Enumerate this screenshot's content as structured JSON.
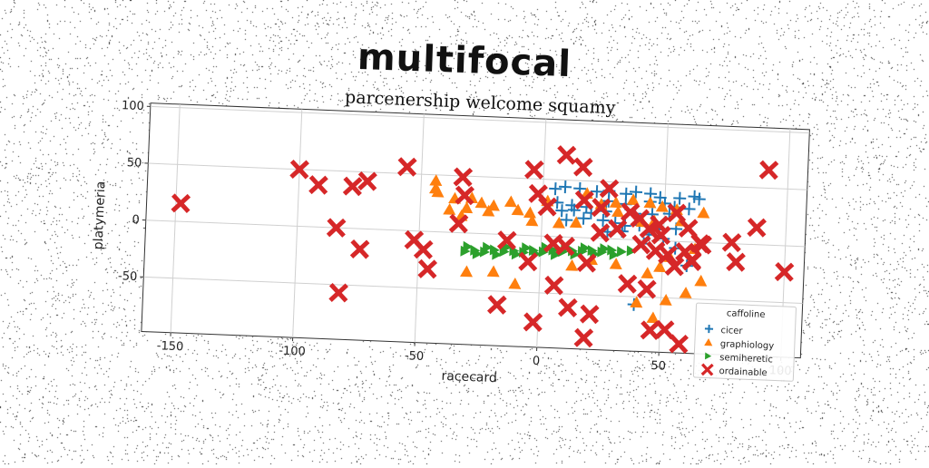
{
  "title": "multifocal",
  "chart_data": {
    "type": "scatter",
    "title": "parcenership welcome squamy",
    "xlabel": "racecard",
    "ylabel": "platymeria",
    "xlim": [
      -162,
      108
    ],
    "ylim": [
      -98,
      103
    ],
    "xticks": [
      -150,
      -100,
      -50,
      0,
      50,
      100
    ],
    "yticks": [
      100,
      50,
      0,
      -50
    ],
    "grid": true,
    "legend": {
      "placement": "bottom-right",
      "title": "caffoline"
    },
    "series": [
      {
        "name": "cicer",
        "marker": "plus",
        "color": "#1f77b4",
        "points": [
          [
            5,
            42
          ],
          [
            9,
            44
          ],
          [
            15,
            43
          ],
          [
            22,
            41
          ],
          [
            27,
            42
          ],
          [
            34,
            40
          ],
          [
            38,
            42
          ],
          [
            44,
            41
          ],
          [
            48,
            38
          ],
          [
            56,
            38
          ],
          [
            62,
            40
          ],
          [
            64,
            38
          ],
          [
            6,
            30
          ],
          [
            12,
            28
          ],
          [
            18,
            27
          ],
          [
            27,
            33
          ],
          [
            34,
            31
          ],
          [
            44,
            34
          ],
          [
            50,
            33
          ],
          [
            54,
            30
          ],
          [
            60,
            29
          ],
          [
            8,
            23
          ],
          [
            13,
            24
          ],
          [
            20,
            22
          ],
          [
            26,
            24
          ],
          [
            38,
            23
          ],
          [
            45,
            23
          ],
          [
            52,
            24
          ],
          [
            10,
            15
          ],
          [
            17,
            17
          ],
          [
            25,
            16
          ],
          [
            30,
            14
          ],
          [
            34,
            12
          ],
          [
            40,
            13
          ],
          [
            48,
            10
          ],
          [
            55,
            11
          ],
          [
            27,
            6
          ],
          [
            33,
            7
          ],
          [
            44,
            5
          ],
          [
            50,
            2
          ],
          [
            42,
            -3
          ],
          [
            55,
            -6
          ],
          [
            39,
            -57
          ],
          [
            60,
            -21
          ]
        ]
      },
      {
        "name": "graphiology",
        "marker": "triangle-up",
        "color": "#ff7f0e",
        "points": [
          [
            -44,
            45
          ],
          [
            -44,
            38
          ],
          [
            -43,
            35
          ],
          [
            -36,
            30
          ],
          [
            -29,
            31
          ],
          [
            -25,
            27
          ],
          [
            -20,
            25
          ],
          [
            -13,
            29
          ],
          [
            -31,
            22
          ],
          [
            -38,
            20
          ],
          [
            -33,
            15
          ],
          [
            -22,
            20
          ],
          [
            -10,
            22
          ],
          [
            -5,
            20
          ],
          [
            -4,
            13
          ],
          [
            7,
            12
          ],
          [
            14,
            13
          ],
          [
            2,
            31
          ],
          [
            18,
            39
          ],
          [
            24,
            30
          ],
          [
            30,
            32
          ],
          [
            37,
            35
          ],
          [
            44,
            33
          ],
          [
            49,
            30
          ],
          [
            55,
            28
          ],
          [
            66,
            26
          ],
          [
            31,
            24
          ],
          [
            41,
            16
          ],
          [
            46,
            17
          ],
          [
            57,
            18
          ],
          [
            63,
            -6
          ],
          [
            53,
            -14
          ],
          [
            49,
            -23
          ],
          [
            44,
            -29
          ],
          [
            66,
            -34
          ],
          [
            -30,
            -34
          ],
          [
            -19,
            -33
          ],
          [
            -10,
            -43
          ],
          [
            13,
            -25
          ],
          [
            21,
            -19
          ],
          [
            31,
            -22
          ],
          [
            40,
            -55
          ],
          [
            47,
            -68
          ],
          [
            52,
            -52
          ],
          [
            60,
            -45
          ]
        ]
      },
      {
        "name": "semiheretic",
        "marker": "triangle-right",
        "color": "#2ca02c",
        "points": [
          [
            -31,
            -16
          ],
          [
            -27,
            -15
          ],
          [
            -23,
            -16
          ],
          [
            -19,
            -14
          ],
          [
            -15,
            -15
          ],
          [
            -11,
            -14
          ],
          [
            -7,
            -15
          ],
          [
            -3,
            -13
          ],
          [
            1,
            -14
          ],
          [
            5,
            -12
          ],
          [
            9,
            -13
          ],
          [
            13,
            -12
          ],
          [
            17,
            -12
          ],
          [
            21,
            -11
          ],
          [
            25,
            -12
          ],
          [
            29,
            -10
          ],
          [
            33,
            -11
          ],
          [
            37,
            -10
          ],
          [
            -30,
            -12
          ],
          [
            -22,
            -12
          ],
          [
            -14,
            -11
          ],
          [
            -6,
            -11
          ],
          [
            2,
            -10
          ],
          [
            10,
            -10
          ],
          [
            18,
            -9
          ],
          [
            26,
            -9
          ],
          [
            -26,
            -18
          ],
          [
            -18,
            -18
          ],
          [
            -10,
            -17
          ],
          [
            -2,
            -16
          ],
          [
            6,
            -16
          ],
          [
            14,
            -15
          ],
          [
            22,
            -14
          ],
          [
            30,
            -14
          ]
        ]
      },
      {
        "name": "ordainable",
        "marker": "x-filled",
        "color": "#d62728",
        "points": [
          [
            -148,
            16
          ],
          [
            -100,
            50
          ],
          [
            -92,
            37
          ],
          [
            -78,
            37
          ],
          [
            -72,
            42
          ],
          [
            -56,
            56
          ],
          [
            -84,
            0
          ],
          [
            -74,
            -18
          ],
          [
            -52,
            -8
          ],
          [
            -48,
            -16
          ],
          [
            -46,
            -33
          ],
          [
            -33,
            49
          ],
          [
            -32,
            33
          ],
          [
            -34,
            8
          ],
          [
            -82,
            -57
          ],
          [
            -14,
            -5
          ],
          [
            -17,
            -62
          ],
          [
            -5,
            -23
          ],
          [
            -4,
            58
          ],
          [
            -2,
            37
          ],
          [
            2,
            26
          ],
          [
            5,
            -6
          ],
          [
            6,
            -43
          ],
          [
            -2,
            -76
          ],
          [
            10,
            -8
          ],
          [
            12,
            -62
          ],
          [
            19,
            -22
          ],
          [
            21,
            -67
          ],
          [
            9,
            72
          ],
          [
            16,
            62
          ],
          [
            17,
            33
          ],
          [
            24,
            27
          ],
          [
            27,
            44
          ],
          [
            24,
            5
          ],
          [
            19,
            -88
          ],
          [
            31,
            9
          ],
          [
            36,
            24
          ],
          [
            40,
            19
          ],
          [
            44,
            10
          ],
          [
            48,
            14
          ],
          [
            49,
            5
          ],
          [
            41,
            -4
          ],
          [
            47,
            -9
          ],
          [
            52,
            -12
          ],
          [
            55,
            -22
          ],
          [
            62,
            -16
          ],
          [
            59,
            -9
          ],
          [
            65,
            -1
          ],
          [
            60,
            12
          ],
          [
            55,
            25
          ],
          [
            36,
            -39
          ],
          [
            44,
            -43
          ],
          [
            46,
            -79
          ],
          [
            52,
            -78
          ],
          [
            58,
            -90
          ],
          [
            66,
            -2
          ],
          [
            62,
            -17
          ],
          [
            78,
            1
          ],
          [
            80,
            -16
          ],
          [
            88,
            15
          ],
          [
            92,
            66
          ],
          [
            100,
            -23
          ]
        ]
      }
    ]
  }
}
